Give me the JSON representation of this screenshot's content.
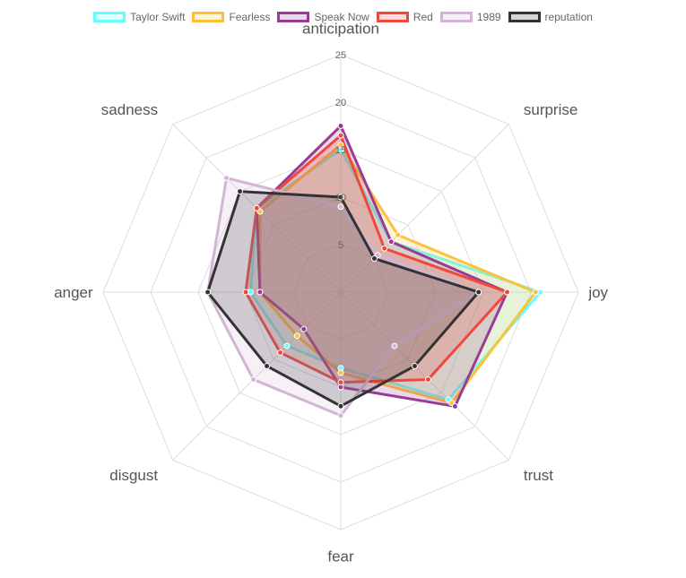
{
  "chart_data": {
    "type": "radar",
    "axes": [
      "anticipation",
      "surprise",
      "joy",
      "trust",
      "fear",
      "disgust",
      "anger",
      "sadness"
    ],
    "scale": {
      "min": 0,
      "max": 25,
      "step": 5,
      "tick_labels": [
        "5",
        "10",
        "15",
        "20",
        "25"
      ]
    },
    "grid": true,
    "legend_position": "top",
    "series": [
      {
        "name": "Taylor Swift",
        "color": "#66ffff",
        "values": [
          15,
          7.5,
          21,
          16,
          8,
          8,
          9.5,
          12.5
        ]
      },
      {
        "name": "Fearless",
        "color": "#ffc13a",
        "values": [
          15.5,
          8.5,
          20.5,
          16.5,
          8.5,
          6.5,
          8.5,
          12
        ]
      },
      {
        "name": "Speak Now",
        "color": "#9a3b96",
        "values": [
          17.5,
          7.5,
          17.5,
          17,
          10,
          5.5,
          8.5,
          12.5
        ]
      },
      {
        "name": "Red",
        "color": "#f0483c",
        "values": [
          16.5,
          6.5,
          17.5,
          13,
          9.5,
          9,
          10,
          12.5
        ]
      },
      {
        "name": "1989",
        "color": "#d4b4d6",
        "values": [
          9,
          5.5,
          14.5,
          8,
          13,
          13,
          14,
          17
        ]
      },
      {
        "name": "reputation",
        "color": "#333333",
        "values": [
          10,
          5,
          14.5,
          11,
          12,
          11,
          14,
          15
        ]
      }
    ]
  }
}
